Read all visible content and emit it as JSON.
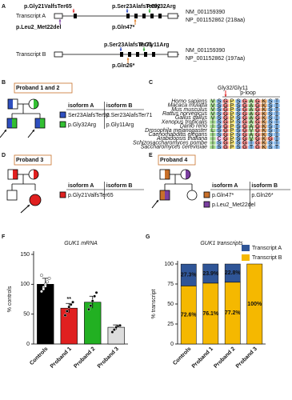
{
  "panels": {
    "a": {
      "label": "A",
      "transcripts": [
        {
          "name": "Transcript A",
          "nm": "NM_001159390",
          "np": "NP_001152862 (218aa)",
          "mutations": [
            {
              "text": "p.Gly21ValfsTer65",
              "color": "#e02020"
            },
            {
              "text": "p.Ser23AlafsTer92",
              "color": "#1f3fbf"
            },
            {
              "text": "P.Gly32Arg",
              "color": "#22a022"
            },
            {
              "text": "p.Leu2_Met22del",
              "color": "#7b3fa0"
            },
            {
              "text": "p.Gln47*",
              "color": "#e07b20"
            }
          ]
        },
        {
          "name": "Transcript B",
          "nm": "NM_001159390",
          "np": "NP_001152862 (197aa)",
          "mutations": [
            {
              "text": "p.Ser23AlafsTer71",
              "color": "#1f3fbf"
            },
            {
              "text": "P.Gly11Arg",
              "color": "#22a022"
            },
            {
              "text": "p.Gln26*",
              "color": "#e07b20"
            }
          ]
        }
      ]
    },
    "b": {
      "label": "B",
      "title": "Proband 1 and 2",
      "header": [
        "isoform A",
        "isoform B"
      ],
      "rows": [
        {
          "a": "Ser23AlafsTer92",
          "b": "p.Ser23AlafsTer71",
          "color": "#2f4fc0"
        },
        {
          "a": "p.Gly32Arg",
          "b": "p.Gly11Arg",
          "color": "#33c033"
        }
      ]
    },
    "c": {
      "label": "C",
      "site": "Gly32/Gly11",
      "motif": "p-loop",
      "species": [
        "Homo sapiens",
        "Macaca mulatta",
        "Mus musculus",
        "Rattus norvegicus",
        "Gallus gallus",
        "Xenopus tropicalis",
        "Danio rerio",
        "Drosophila melanogaster",
        "Caenorhabditis elegans",
        "Arabidopsis thaliana",
        "Schizosaccharomyces pombe",
        "Saccharomyces cerevisiae"
      ],
      "sequences": [
        [
          "V",
          "S",
          "G",
          "P",
          "S",
          "G",
          "A",
          "G",
          "K",
          "S",
          "T"
        ],
        [
          "V",
          "S",
          "G",
          "P",
          "S",
          "G",
          "A",
          "G",
          "K",
          "S",
          "T"
        ],
        [
          "V",
          "S",
          "G",
          "P",
          "S",
          "G",
          "A",
          "G",
          "K",
          "S",
          "T"
        ],
        [
          "V",
          "S",
          "G",
          "P",
          "S",
          "G",
          "A",
          "G",
          "K",
          "S",
          "T"
        ],
        [
          "V",
          "S",
          "G",
          "P",
          "S",
          "G",
          "A",
          "G",
          "K",
          "S",
          "T"
        ],
        [
          "I",
          "S",
          "G",
          "P",
          "S",
          "G",
          "A",
          "G",
          "K",
          "S",
          "T"
        ],
        [
          "I",
          "S",
          "G",
          "P",
          "S",
          "G",
          "A",
          "G",
          "K",
          "S",
          "T"
        ],
        [
          "L",
          "S",
          "G",
          "P",
          "S",
          "G",
          "V",
          "G",
          "K",
          "S",
          "T"
        ],
        [
          "I",
          "S",
          "G",
          "P",
          "S",
          "G",
          "A",
          "G",
          "K",
          "S",
          "T"
        ],
        [
          "I",
          "C",
          "G",
          "P",
          "S",
          "G",
          "V",
          "G",
          "K",
          "G",
          "T"
        ],
        [
          "I",
          "S",
          "G",
          "P",
          "S",
          "G",
          "T",
          "G",
          "K",
          "S",
          "T"
        ],
        [
          "I",
          "S",
          "G",
          "P",
          "S",
          "G",
          "T",
          "G",
          "K",
          "S",
          "T"
        ]
      ]
    },
    "d": {
      "label": "D",
      "title": "Proband 3",
      "header": [
        "isoform A",
        "isoform B"
      ],
      "rows": [
        {
          "a": "p.Gly21ValfsTer65",
          "color": "#e02020"
        }
      ]
    },
    "e": {
      "label": "E",
      "title": "Proband 4",
      "header": [
        "isoform A",
        "isoform B"
      ],
      "rows": [
        {
          "a": "p.Gln47*",
          "b": "p.Gln26*",
          "color": "#c8702a"
        },
        {
          "a": "p.Leu2_Met22del",
          "color": "#7b3fa0"
        }
      ]
    }
  },
  "chart_data": [
    {
      "type": "bar",
      "panel": "F",
      "title": "GUK1 mRNA",
      "ylabel": "% controls",
      "categories": [
        "Controls",
        "Proband 1",
        "Proband 2",
        "Proband 3"
      ],
      "values": [
        100,
        60,
        70,
        28
      ],
      "errors": [
        10,
        8,
        10,
        4
      ],
      "colors": [
        "#000000",
        "#e02020",
        "#22b022",
        "#dddddd"
      ],
      "points": [
        [
          88,
          95,
          100,
          104,
          110,
          115,
          92,
          97
        ],
        [
          48,
          55,
          62,
          66,
          70
        ],
        [
          58,
          64,
          72,
          80,
          86
        ],
        [
          20,
          24,
          28,
          30,
          31
        ]
      ],
      "annotation": "**",
      "ylim": [
        0,
        150
      ],
      "yticks": [
        0,
        50,
        100,
        150
      ]
    },
    {
      "type": "stacked-bar",
      "panel": "G",
      "title": "GUK1 transcripts",
      "ylabel": "% transcript",
      "categories": [
        "Controls",
        "Proband 1",
        "Proband 2",
        "Proband 3"
      ],
      "series": [
        {
          "name": "Transcript B",
          "color": "#f5b800",
          "values": [
            72.6,
            76.1,
            77.2,
            100
          ],
          "value_labels": [
            "72.6%",
            "76.1%",
            "77.2%",
            "100%"
          ]
        },
        {
          "name": "Transcript A",
          "color": "#2f5597",
          "values": [
            27.3,
            23.9,
            22.8,
            0
          ],
          "value_labels": [
            "27.3%",
            "23.9%",
            "22.8%",
            null
          ]
        }
      ],
      "ylim": [
        0,
        100
      ],
      "yticks": [
        0,
        25,
        50,
        75,
        100
      ],
      "legend": "top-right"
    }
  ]
}
